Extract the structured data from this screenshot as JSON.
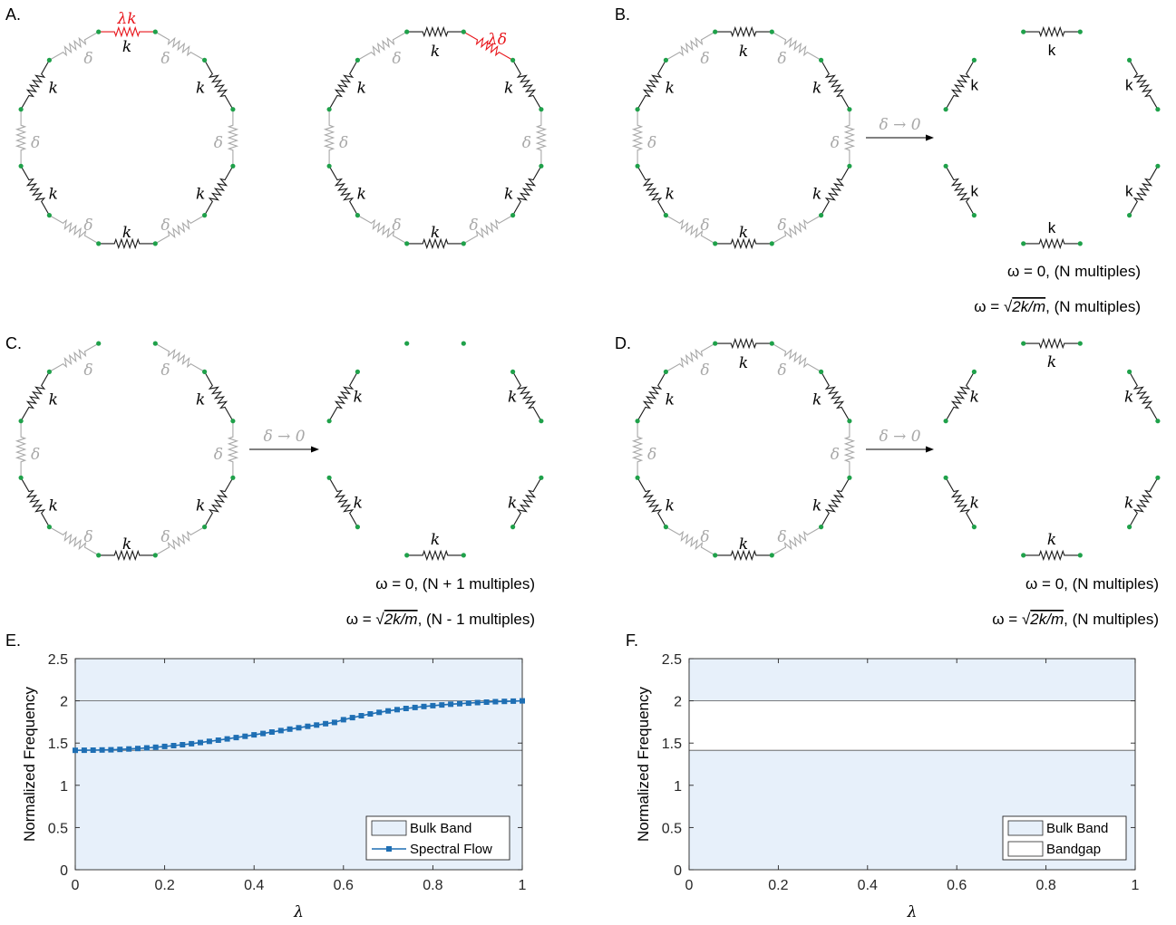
{
  "panels": {
    "A": {
      "label": "A.",
      "spring_label": "k",
      "delta_label": "δ",
      "mod_spring_left": "λk",
      "mod_spring_right": "λδ"
    },
    "B": {
      "label": "B.",
      "ring_spring_label": "k",
      "delta_label": "δ",
      "arrow_label": "δ → 0",
      "result_spring_label": "k",
      "eq1": "ω = 0,  (N multiples)",
      "eq2_prefix": "ω = ",
      "eq2_radicand": "2k/m",
      "eq2_suffix": ",  (N multiples)"
    },
    "C": {
      "label": "C.",
      "spring_label": "k",
      "delta_label": "δ",
      "arrow_label": "δ → 0",
      "eq1": "ω = 0,  (N + 1 multiples)",
      "eq2_prefix": "ω = ",
      "eq2_radicand": "2k/m",
      "eq2_suffix": ",  (N - 1 multiples)"
    },
    "D": {
      "label": "D.",
      "spring_label": "k",
      "delta_label": "δ",
      "arrow_label": "δ → 0",
      "eq1": "ω = 0,  (N multiples)",
      "eq2_prefix": "ω = ",
      "eq2_radicand": "2k/m",
      "eq2_suffix": ",  (N multiples)"
    }
  },
  "colors": {
    "spring": "#1a1a1a",
    "delta": "#a8a8a8",
    "highlight": "#e8151b",
    "node": "#1fa14a",
    "band_fill": "#e7f0fa",
    "series": "#1f6fb4"
  },
  "chart_data": [
    {
      "panel": "E.",
      "type": "line",
      "xlabel": "λ",
      "ylabel": "Normalized Frequency",
      "xlim": [
        0,
        1
      ],
      "ylim": [
        0,
        2.5
      ],
      "xticks": [
        "0",
        "0.2",
        "0.4",
        "0.6",
        "0.8",
        "1"
      ],
      "yticks": [
        "0",
        "0.5",
        "1",
        "1.5",
        "2",
        "2.5"
      ],
      "bands": [
        {
          "name": "Bulk Band",
          "y": [
            0,
            1.4142
          ]
        },
        {
          "name": "Bulk Band",
          "y": [
            2,
            2.5
          ]
        }
      ],
      "gap_fill": "band",
      "gap_lines": [
        1.4142,
        2.0
      ],
      "legend": [
        "Bulk Band",
        "Spectral Flow"
      ],
      "legend_position": "lower-right",
      "series": [
        {
          "name": "Spectral Flow",
          "x": [
            0,
            0.02,
            0.04,
            0.06,
            0.08,
            0.1,
            0.12,
            0.14,
            0.16,
            0.18,
            0.2,
            0.22,
            0.24,
            0.26,
            0.28,
            0.3,
            0.32,
            0.34,
            0.36,
            0.38,
            0.4,
            0.42,
            0.44,
            0.46,
            0.48,
            0.5,
            0.52,
            0.54,
            0.56,
            0.58,
            0.6,
            0.62,
            0.64,
            0.66,
            0.68,
            0.7,
            0.72,
            0.74,
            0.76,
            0.78,
            0.8,
            0.82,
            0.84,
            0.86,
            0.88,
            0.9,
            0.92,
            0.94,
            0.96,
            0.98,
            1.0
          ],
          "y": [
            1.414,
            1.415,
            1.416,
            1.418,
            1.421,
            1.425,
            1.43,
            1.436,
            1.443,
            1.451,
            1.46,
            1.47,
            1.481,
            1.493,
            1.506,
            1.52,
            1.534,
            1.549,
            1.565,
            1.581,
            1.598,
            1.614,
            1.631,
            1.648,
            1.665,
            1.681,
            1.698,
            1.714,
            1.73,
            1.745,
            1.777,
            1.802,
            1.824,
            1.845,
            1.864,
            1.881,
            1.896,
            1.91,
            1.922,
            1.933,
            1.943,
            1.952,
            1.96,
            1.967,
            1.973,
            1.98,
            1.985,
            1.99,
            1.994,
            1.997,
            2.0
          ]
        }
      ]
    },
    {
      "panel": "F.",
      "type": "area",
      "xlabel": "λ",
      "ylabel": "Normalized Frequency",
      "xlim": [
        0,
        1
      ],
      "ylim": [
        0,
        2.5
      ],
      "xticks": [
        "0",
        "0.2",
        "0.4",
        "0.6",
        "0.8",
        "1"
      ],
      "yticks": [
        "0",
        "0.5",
        "1",
        "1.5",
        "2",
        "2.5"
      ],
      "bands": [
        {
          "name": "Bulk Band",
          "y": [
            0,
            1.4142
          ]
        },
        {
          "name": "Bulk Band",
          "y": [
            2,
            2.5
          ]
        }
      ],
      "gap": {
        "name": "Bandgap",
        "y": [
          1.4142,
          2.0
        ]
      },
      "gap_lines": [
        1.4142,
        2.0
      ],
      "legend": [
        "Bulk Band",
        "Bandgap"
      ],
      "legend_position": "lower-right"
    }
  ]
}
